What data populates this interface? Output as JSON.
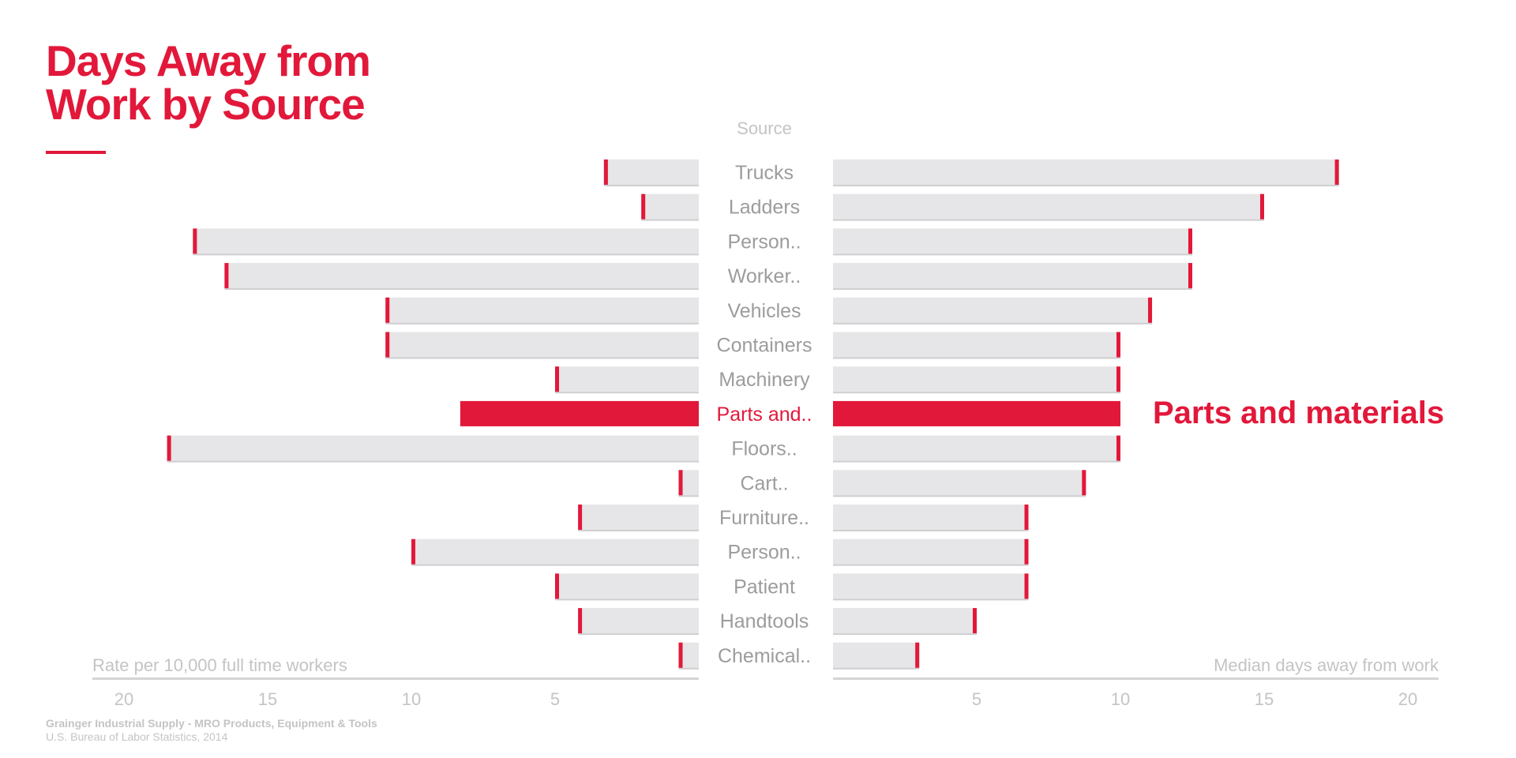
{
  "title_lines": [
    "Days Away from",
    "Work by Source"
  ],
  "footer": {
    "source_line": "Grainger Industrial Supply - MRO Products, Equipment & Tools",
    "credit_line": "U.S. Bureau of Labor Statistics, 2014"
  },
  "colors": {
    "accent": "#e2183a",
    "bar": "#e6e5e7",
    "bar_shadow": "#cfcfd1",
    "label": "#9c9c9c",
    "axis_text": "#c4c4c4",
    "axis_line": "#d4d4d4"
  },
  "chart_data": {
    "type": "bar",
    "layout": "butterfly",
    "category_header": "Source",
    "highlight_label": "Parts and materials",
    "categories": [
      "Trucks",
      "Ladders",
      "Person..",
      "Worker..",
      "Vehicles",
      "Containers",
      "Machinery",
      "Parts and..",
      "Floors..",
      "Cart..",
      "Furniture..",
      "Person..",
      "Patient",
      "Handtools",
      "Chemical.."
    ],
    "highlight": "Parts and..",
    "series": [
      {
        "side": "left",
        "xlabel": "Rate per 10,000 full time workers",
        "xlim": [
          0,
          21
        ],
        "ticks": [
          20,
          15,
          10,
          5
        ],
        "values": [
          3.3,
          2.0,
          17.6,
          16.5,
          10.9,
          10.9,
          5.0,
          8.3,
          18.5,
          0.7,
          4.2,
          10.0,
          5.0,
          4.2,
          0.7
        ]
      },
      {
        "side": "right",
        "xlabel": "Median days away from work",
        "xlim": [
          0,
          21
        ],
        "ticks": [
          5,
          10,
          15,
          20
        ],
        "values": [
          17.6,
          15.0,
          12.5,
          12.5,
          11.1,
          10.0,
          10.0,
          10.0,
          10.0,
          8.8,
          6.8,
          6.8,
          6.8,
          5.0,
          3.0
        ]
      }
    ]
  }
}
